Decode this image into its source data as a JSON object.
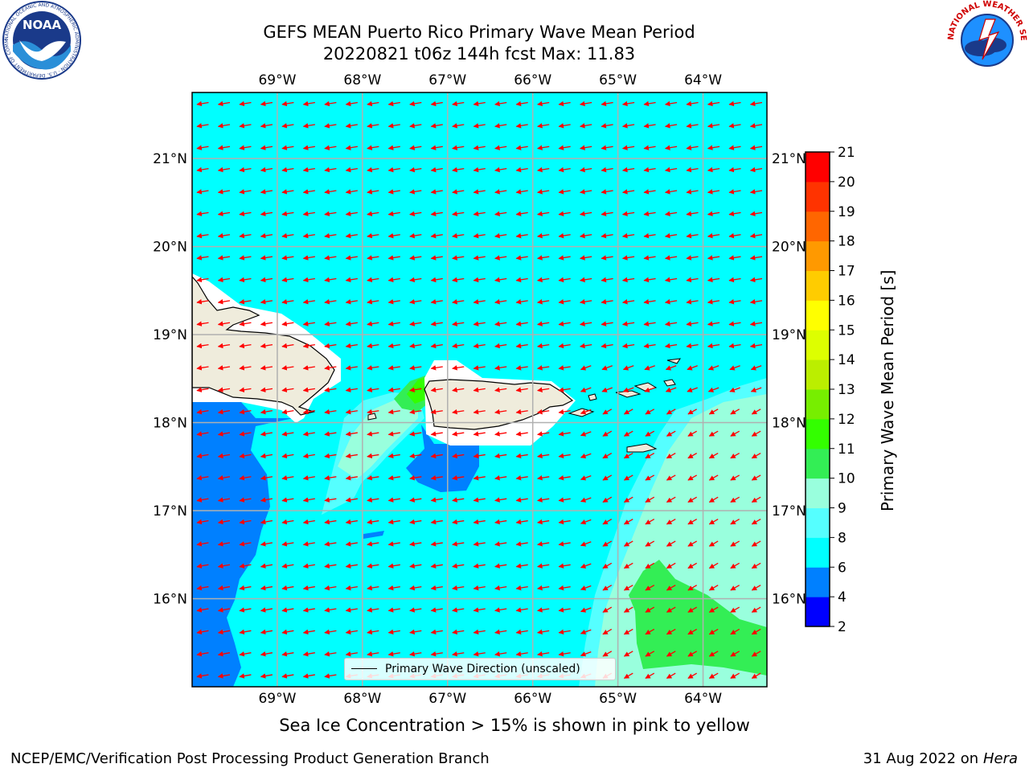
{
  "title_line1": "GEFS MEAN Puerto Rico Primary Wave Mean Period",
  "title_line2": "20220821 t06z 144h fcst   Max: 11.83",
  "sea_ice_note": "Sea Ice Concentration > 15% is shown in pink to yellow",
  "footer_left": "NCEP/EMC/Verification Post Processing Product Generation Branch",
  "footer_right_prefix": "31 Aug 2022 on",
  "footer_right_machine": "Hera",
  "legend_label": "Primary Wave Direction (unscaled)",
  "logos": {
    "noaa_text": "NOAA",
    "noaa_ring": "NATIONAL OCEANIC AND ATMOSPHERIC ADMINISTRATION · U.S. DEPARTMENT OF COMMERCE",
    "nws_ring": "NATIONAL WEATHER SERVICE"
  },
  "colors": {
    "ocean_base": "#00ffff",
    "land": "#efecdc",
    "arrow": "#ff0000"
  },
  "chart_data": {
    "type": "heatmap",
    "title": "GEFS MEAN Puerto Rico Primary Wave Mean Period",
    "variable_label": "Primary Wave Mean Period [s]",
    "max_value": 11.83,
    "x_ticks": [
      "69°W",
      "68°W",
      "67°W",
      "66°W",
      "65°W",
      "64°W"
    ],
    "x_tick_values": [
      -69,
      -68,
      -67,
      -66,
      -65,
      -64
    ],
    "y_ticks": [
      "21°N",
      "20°N",
      "19°N",
      "18°N",
      "17°N",
      "16°N"
    ],
    "y_tick_values": [
      21,
      20,
      19,
      18,
      17,
      16
    ],
    "lon_range": [
      -70.0,
      -63.25
    ],
    "lat_range": [
      15.0,
      21.75
    ],
    "grid": true,
    "colorbar": {
      "levels": [
        2,
        4,
        6,
        8,
        9,
        10,
        11,
        12,
        13,
        14,
        15,
        16,
        17,
        18,
        19,
        20,
        21
      ],
      "tick_labels": [
        "2",
        "4",
        "6",
        "8",
        "9",
        "10",
        "11",
        "12",
        "13",
        "14",
        "15",
        "16",
        "17",
        "18",
        "19",
        "20",
        "21"
      ],
      "colors": [
        "#0000ff",
        "#0080ff",
        "#00ffff",
        "#55ffff",
        "#99ffdd",
        "#33ee55",
        "#33ff00",
        "#77ee00",
        "#bbee00",
        "#ddff00",
        "#ffff00",
        "#ffcc00",
        "#ff9900",
        "#ff6600",
        "#ff3300",
        "#ff0000"
      ]
    },
    "wave_direction_deg_from": 75,
    "arrow_grid_spacing_deg": 0.25
  }
}
